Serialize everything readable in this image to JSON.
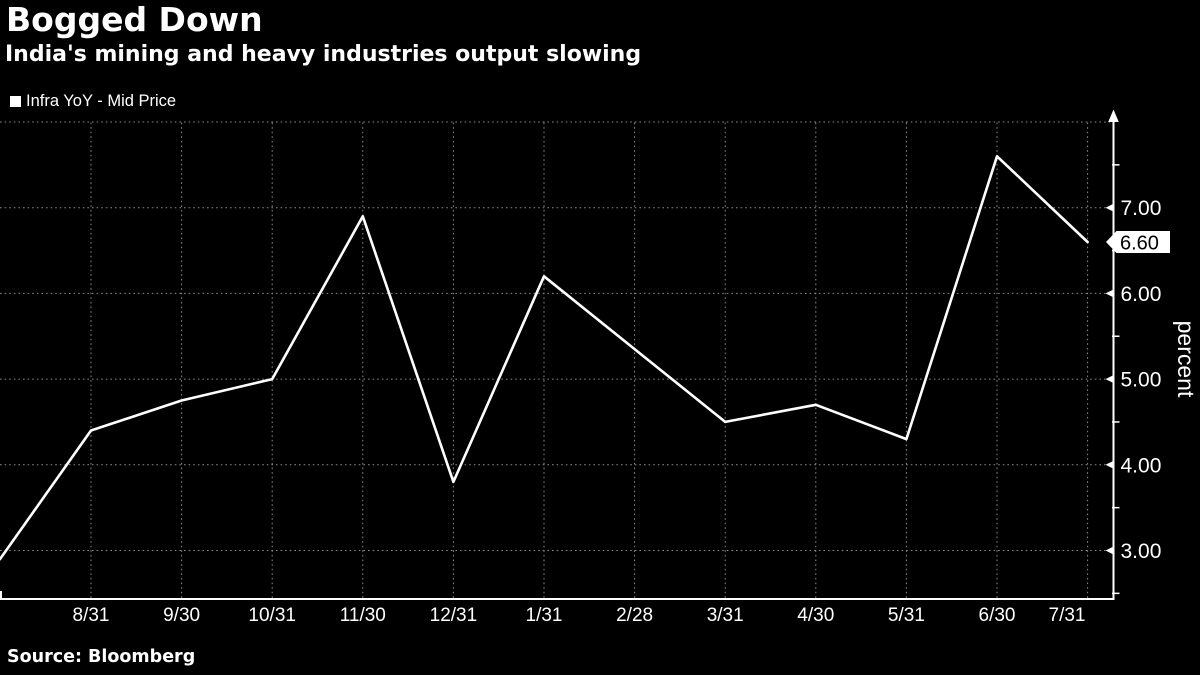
{
  "header": {
    "title": "Bogged Down",
    "subtitle": "India's mining and heavy industries output slowing"
  },
  "legend": {
    "label": "Infra YoY - Mid Price",
    "swatch_color": "#ffffff"
  },
  "source": {
    "text": "Source: Bloomberg"
  },
  "colors": {
    "background": "#000000",
    "line": "#ffffff",
    "grid": "#8a8a8a",
    "axis": "#ffffff",
    "tick_label": "#ffffff",
    "callout_bg": "#ffffff",
    "callout_text": "#000000"
  },
  "chart_data": {
    "type": "line",
    "title": "Bogged Down",
    "subtitle": "India's mining and heavy industries output slowing",
    "categories": [
      "8/31",
      "9/30",
      "10/31",
      "11/30",
      "12/31",
      "1/31",
      "2/28",
      "3/31",
      "4/30",
      "5/31",
      "6/30",
      "7/31"
    ],
    "series": [
      {
        "name": "Infra YoY - Mid Price",
        "values": [
          4.4,
          4.75,
          5.0,
          6.9,
          3.8,
          6.2,
          5.35,
          4.5,
          4.7,
          4.3,
          7.6,
          6.6
        ]
      }
    ],
    "lead_in_value": 2.9,
    "last_price": {
      "value": 6.6,
      "label": "6.60"
    },
    "y_axis": {
      "label": "percent",
      "tick_values": [
        3,
        4,
        5,
        6,
        7
      ],
      "tick_labels": [
        "3.00",
        "4.00",
        "5.00",
        "6.00",
        "7.00"
      ],
      "grid_values": [
        3,
        4,
        5,
        6,
        7,
        8
      ],
      "minor_tick_values": [
        2.5,
        3.5,
        4.5,
        5.5,
        6.5,
        7.5
      ],
      "range": [
        2.5,
        8.0
      ]
    },
    "grid": true,
    "legend_position": "top-left",
    "ylabel": "percent",
    "xlabel": ""
  }
}
